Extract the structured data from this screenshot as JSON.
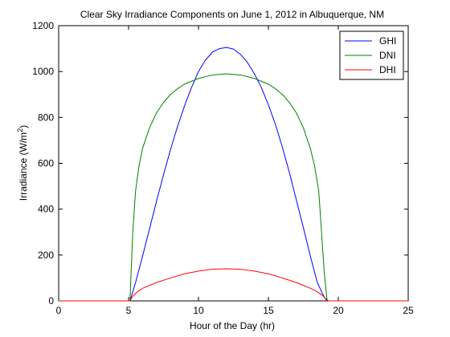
{
  "chart_data": {
    "type": "line",
    "title": "Clear Sky Irradiance Components on June 1, 2012 in Albuquerque, NM",
    "xlabel": "Hour of the Day (hr)",
    "ylabel_main": "Irradiance (W/m",
    "ylabel_sup": "2",
    "ylabel_end": ")",
    "xlim": [
      0,
      25
    ],
    "ylim": [
      0,
      1200
    ],
    "xticks": [
      0,
      5,
      10,
      15,
      20,
      25
    ],
    "yticks": [
      0,
      200,
      400,
      600,
      800,
      1000,
      1200
    ],
    "grid": false,
    "legend_position": "top-right",
    "series": [
      {
        "name": "GHI",
        "color": "#0000ff",
        "x": [
          0,
          5.1,
          5.5,
          6,
          6.5,
          7,
          7.5,
          8,
          8.5,
          9,
          9.5,
          10,
          10.5,
          11,
          11.5,
          12,
          12.5,
          13,
          13.5,
          14,
          14.5,
          15,
          15.5,
          16,
          16.5,
          17,
          17.5,
          18,
          18.5,
          19,
          19.3,
          25
        ],
        "y": [
          0,
          0,
          80,
          195,
          315,
          435,
          550,
          660,
          760,
          850,
          930,
          1000,
          1050,
          1085,
          1100,
          1105,
          1098,
          1075,
          1040,
          990,
          930,
          855,
          770,
          670,
          560,
          440,
          320,
          195,
          80,
          15,
          0,
          0
        ]
      },
      {
        "name": "DNI",
        "color": "#008000",
        "x": [
          0,
          5.1,
          5.3,
          5.5,
          5.75,
          6,
          6.5,
          7,
          7.5,
          8,
          8.5,
          9,
          10,
          11,
          12,
          13,
          14,
          15,
          15.5,
          16,
          16.5,
          17,
          17.5,
          18,
          18.3,
          18.6,
          18.8,
          19,
          19.2,
          25
        ],
        "y": [
          0,
          0,
          300,
          480,
          590,
          665,
          755,
          820,
          865,
          900,
          925,
          945,
          970,
          985,
          990,
          985,
          970,
          945,
          925,
          900,
          865,
          820,
          755,
          665,
          590,
          480,
          300,
          120,
          0,
          0
        ]
      },
      {
        "name": "DHI",
        "color": "#ff0000",
        "x": [
          0,
          5.1,
          5.3,
          5.6,
          6,
          7,
          8,
          9,
          10,
          11,
          12,
          13,
          14,
          15,
          16,
          17,
          18,
          18.5,
          18.9,
          19.2,
          25
        ],
        "y": [
          0,
          0,
          20,
          38,
          55,
          80,
          100,
          118,
          130,
          138,
          140,
          138,
          130,
          118,
          100,
          80,
          55,
          40,
          22,
          0,
          0
        ]
      }
    ]
  }
}
